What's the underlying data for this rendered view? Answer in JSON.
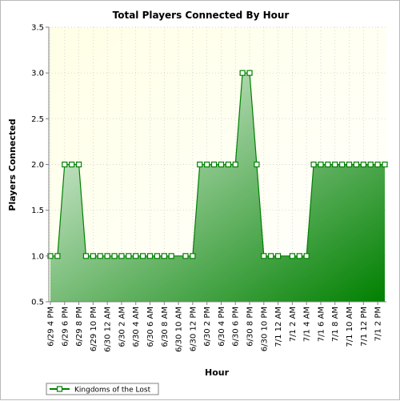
{
  "chart_data": {
    "type": "area",
    "title": "Total Players Connected By Hour",
    "xlabel": "Hour",
    "ylabel": "Players Connected",
    "ylim": [
      0.5,
      3.5
    ],
    "yticks": [
      "0.5",
      "1.0",
      "1.5",
      "2.0",
      "2.5",
      "3.0",
      "3.5"
    ],
    "grid": true,
    "legend_position": "bottom-left",
    "xticks": [
      {
        "label": "6/29 4 PM",
        "index": 0
      },
      {
        "label": "6/29 6 PM",
        "index": 2
      },
      {
        "label": "6/29 8 PM",
        "index": 4
      },
      {
        "label": "6/29 10 PM",
        "index": 6
      },
      {
        "label": "6/30 12 AM",
        "index": 8
      },
      {
        "label": "6/30 2 AM",
        "index": 10
      },
      {
        "label": "6/30 4 AM",
        "index": 12
      },
      {
        "label": "6/30 6 AM",
        "index": 14
      },
      {
        "label": "6/30 8 AM",
        "index": 16
      },
      {
        "label": "6/30 10 AM",
        "index": 18
      },
      {
        "label": "6/30 12 PM",
        "index": 20
      },
      {
        "label": "6/30 2 PM",
        "index": 22
      },
      {
        "label": "6/30 4 PM",
        "index": 24
      },
      {
        "label": "6/30 6 PM",
        "index": 26
      },
      {
        "label": "6/30 8 PM",
        "index": 28
      },
      {
        "label": "6/30 10 PM",
        "index": 30
      },
      {
        "label": "7/1 12 AM",
        "index": 32
      },
      {
        "label": "7/1 2 AM",
        "index": 34
      },
      {
        "label": "7/1 4 AM",
        "index": 36
      },
      {
        "label": "7/1 6 AM",
        "index": 38
      },
      {
        "label": "7/1 8 AM",
        "index": 40
      },
      {
        "label": "7/1 10 AM",
        "index": 42
      },
      {
        "label": "7/1 12 PM",
        "index": 44
      },
      {
        "label": "7/1 2 PM",
        "index": 46
      }
    ],
    "series": [
      {
        "name": "Kingdoms of the Lost",
        "color": "#008000",
        "points": [
          [
            0,
            1
          ],
          [
            1,
            1
          ],
          [
            2,
            2
          ],
          [
            3,
            2
          ],
          [
            4,
            2
          ],
          [
            5,
            1
          ],
          [
            6,
            1
          ],
          [
            7,
            1
          ],
          [
            8,
            1
          ],
          [
            9,
            1
          ],
          [
            10,
            1
          ],
          [
            11,
            1
          ],
          [
            12,
            1
          ],
          [
            13,
            1
          ],
          [
            14,
            1
          ],
          [
            15,
            1
          ],
          [
            16,
            1
          ],
          [
            17,
            1
          ],
          [
            19,
            1
          ],
          [
            20,
            1
          ],
          [
            21,
            2
          ],
          [
            22,
            2
          ],
          [
            23,
            2
          ],
          [
            24,
            2
          ],
          [
            25,
            2
          ],
          [
            26,
            2
          ],
          [
            27,
            3
          ],
          [
            28,
            3
          ],
          [
            29,
            2
          ],
          [
            30,
            1
          ],
          [
            31,
            1
          ],
          [
            32,
            1
          ],
          [
            34,
            1
          ],
          [
            35,
            1
          ],
          [
            36,
            1
          ],
          [
            37,
            2
          ],
          [
            38,
            2
          ],
          [
            39,
            2
          ],
          [
            40,
            2
          ],
          [
            41,
            2
          ],
          [
            42,
            2
          ],
          [
            43,
            2
          ],
          [
            44,
            2
          ],
          [
            45,
            2
          ],
          [
            46,
            2
          ],
          [
            47,
            2
          ]
        ]
      }
    ]
  }
}
